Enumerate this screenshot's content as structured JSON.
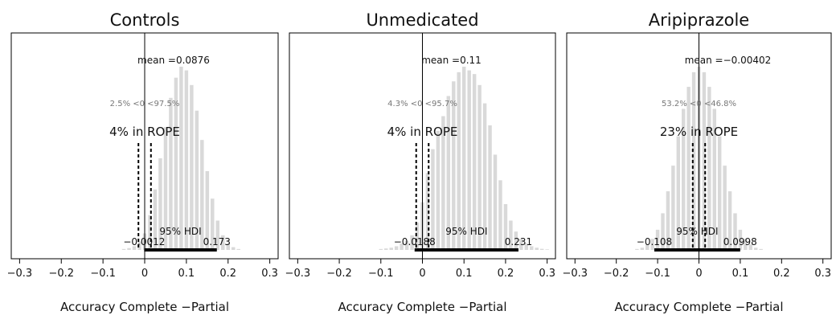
{
  "chart_data": [
    {
      "type": "bar",
      "title": "Controls",
      "xlabel": "Accuracy Complete −Partial",
      "xlim": [
        -0.32,
        0.32
      ],
      "xticks": [
        -0.3,
        -0.2,
        -0.1,
        0,
        0.1,
        0.2,
        0.3
      ],
      "xtick_labels": [
        "−0.3",
        "−0.2",
        "−0.1",
        "0",
        "0.1",
        "0.2",
        "0.3"
      ],
      "mean_label": "mean =0.0876",
      "prob_label": "2.5% <0 <97.5%",
      "rope_label": "4% in ROPE",
      "rope_pct": 4,
      "rope": [
        -0.015,
        0.015
      ],
      "hdi_label": "95% HDI",
      "hdi": [
        -0.0012,
        0.173
      ],
      "hdi_low_label": "−0.0012",
      "hdi_high_label": "0.173",
      "histogram": {
        "bin_width": 0.0125,
        "bin_centers": [
          -0.05,
          -0.0375,
          -0.025,
          -0.0125,
          0.0,
          0.0125,
          0.025,
          0.0375,
          0.05,
          0.0625,
          0.075,
          0.0875,
          0.1,
          0.1125,
          0.125,
          0.1375,
          0.15,
          0.1625,
          0.175,
          0.1875,
          0.2,
          0.2125,
          0.225
        ],
        "heights": [
          0.005,
          0.01,
          0.02,
          0.045,
          0.09,
          0.19,
          0.33,
          0.5,
          0.67,
          0.83,
          0.94,
          1.0,
          0.98,
          0.9,
          0.76,
          0.6,
          0.43,
          0.28,
          0.16,
          0.08,
          0.035,
          0.015,
          0.005
        ]
      }
    },
    {
      "type": "bar",
      "title": "Unmedicated",
      "xlabel": "Accuracy Complete −Partial",
      "xlim": [
        -0.32,
        0.32
      ],
      "xticks": [
        -0.3,
        -0.2,
        -0.1,
        0,
        0.1,
        0.2,
        0.3
      ],
      "xtick_labels": [
        "−0.3",
        "−0.2",
        "−0.1",
        "0",
        "0.1",
        "0.2",
        "0.3"
      ],
      "mean_label": "mean =0.11",
      "prob_label": "4.3% <0 <95.7%",
      "rope_label": "4% in ROPE",
      "rope_pct": 4,
      "rope": [
        -0.015,
        0.015
      ],
      "hdi_label": "95% HDI",
      "hdi": [
        -0.0188,
        0.231
      ],
      "hdi_low_label": "−0.0188",
      "hdi_high_label": "0.231",
      "histogram": {
        "bin_width": 0.0125,
        "bin_centers": [
          -0.1,
          -0.0875,
          -0.075,
          -0.0625,
          -0.05,
          -0.0375,
          -0.025,
          -0.0125,
          0.0,
          0.0125,
          0.025,
          0.0375,
          0.05,
          0.0625,
          0.075,
          0.0875,
          0.1,
          0.1125,
          0.125,
          0.1375,
          0.15,
          0.1625,
          0.175,
          0.1875,
          0.2,
          0.2125,
          0.225,
          0.2375,
          0.25,
          0.2625,
          0.275,
          0.2875,
          0.3
        ],
        "heights": [
          0.005,
          0.008,
          0.012,
          0.02,
          0.035,
          0.05,
          0.08,
          0.15,
          0.26,
          0.42,
          0.55,
          0.65,
          0.73,
          0.84,
          0.92,
          0.97,
          1.0,
          0.98,
          0.96,
          0.9,
          0.8,
          0.68,
          0.52,
          0.38,
          0.25,
          0.16,
          0.1,
          0.06,
          0.035,
          0.02,
          0.012,
          0.006,
          0.003
        ]
      }
    },
    {
      "type": "bar",
      "title": "Aripiprazole",
      "xlabel": "Accuracy Complete −Partial",
      "xlim": [
        -0.32,
        0.32
      ],
      "xticks": [
        -0.3,
        -0.2,
        -0.1,
        0,
        0.1,
        0.2,
        0.3
      ],
      "xtick_labels": [
        "−0.3",
        "−0.2",
        "−0.1",
        "0",
        "0.1",
        "0.2",
        "0.3"
      ],
      "mean_label": "mean =−0.00402",
      "prob_label": "53.2% <0 <46.8%",
      "rope_label": "23% in ROPE",
      "rope_pct": 23,
      "rope": [
        -0.015,
        0.015
      ],
      "hdi_label": "95% HDI",
      "hdi": [
        -0.108,
        0.0998
      ],
      "hdi_low_label": "−0.108",
      "hdi_high_label": "0.0998",
      "histogram": {
        "bin_width": 0.0125,
        "bin_centers": [
          -0.15,
          -0.1375,
          -0.125,
          -0.1125,
          -0.1,
          -0.0875,
          -0.075,
          -0.0625,
          -0.05,
          -0.0375,
          -0.025,
          -0.0125,
          0.0,
          0.0125,
          0.025,
          0.0375,
          0.05,
          0.0625,
          0.075,
          0.0875,
          0.1,
          0.1125,
          0.125,
          0.1375,
          0.15
        ],
        "heights": [
          0.005,
          0.012,
          0.03,
          0.06,
          0.11,
          0.2,
          0.32,
          0.46,
          0.62,
          0.77,
          0.89,
          0.97,
          1.0,
          0.97,
          0.89,
          0.77,
          0.62,
          0.46,
          0.32,
          0.2,
          0.11,
          0.06,
          0.03,
          0.012,
          0.005
        ]
      }
    }
  ]
}
